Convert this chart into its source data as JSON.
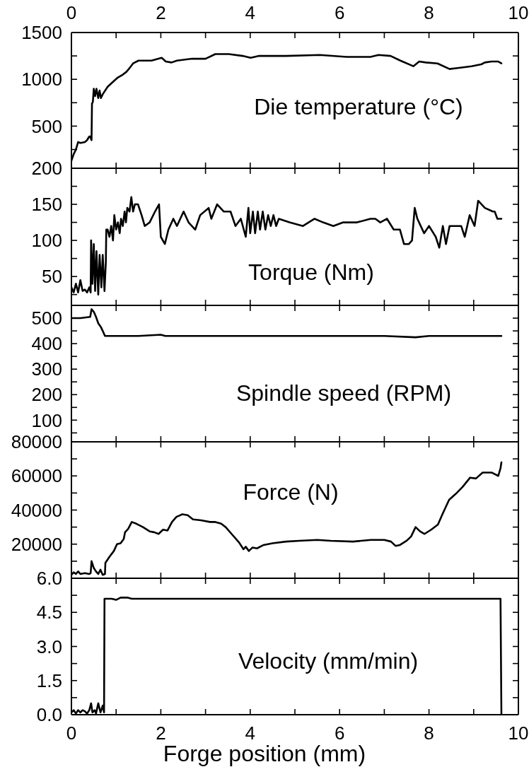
{
  "chart_data": [
    {
      "type": "line",
      "title": "Die temperature (°C)",
      "color": "#000000",
      "xlim": [
        0,
        10
      ],
      "xticks": [
        0,
        {
          "value": 1,
          "label": null
        },
        2,
        {
          "value": 3,
          "label": null
        },
        4,
        {
          "value": 5,
          "label": null
        },
        6,
        {
          "value": 7,
          "label": null
        },
        8,
        {
          "value": 9,
          "label": null
        },
        10
      ],
      "x2lim": [
        0,
        10
      ],
      "x2ticks": [
        0,
        {
          "value": 1,
          "label": null
        },
        2,
        {
          "value": 3,
          "label": null
        },
        4,
        {
          "value": 5,
          "label": null
        },
        6,
        {
          "value": 7,
          "label": null
        },
        8,
        {
          "value": 9,
          "label": null
        },
        10
      ],
      "ylim": [
        50,
        1500
      ],
      "yticks": [
        {
          "value": 250,
          "label": null
        },
        500,
        {
          "value": 750,
          "label": null
        },
        1000,
        {
          "value": 1250,
          "label": null
        },
        1500
      ],
      "tick_labels": "y",
      "x": [
        0,
        0.05,
        0.1,
        0.15,
        0.2,
        0.3,
        0.35,
        0.4,
        0.42,
        0.45,
        0.46,
        0.48,
        0.5,
        0.53,
        0.56,
        0.6,
        0.63,
        0.66,
        0.7,
        0.81,
        0.9,
        1.04,
        1.15,
        1.23,
        1.3,
        1.38,
        1.5,
        1.57,
        1.79,
        2.02,
        2.11,
        2.24,
        2.36,
        2.7,
        3.0,
        3.22,
        3.52,
        3.83,
        4.01,
        4.2,
        4.8,
        5.56,
        6.16,
        6.69,
        6.87,
        7.14,
        7.36,
        7.65,
        7.78,
        7.93,
        8.19,
        8.46,
        8.64,
        8.95,
        9.17,
        9.25,
        9.4,
        9.55,
        9.62
      ],
      "values": [
        130,
        200,
        250,
        330,
        320,
        330,
        350,
        390,
        390,
        350,
        740,
        760,
        900,
        820,
        900,
        800,
        880,
        800,
        840,
        920,
        960,
        1020,
        1050,
        1080,
        1120,
        1170,
        1200,
        1200,
        1200,
        1230,
        1190,
        1180,
        1200,
        1220,
        1220,
        1270,
        1270,
        1250,
        1230,
        1250,
        1250,
        1260,
        1240,
        1240,
        1260,
        1250,
        1200,
        1140,
        1190,
        1180,
        1170,
        1110,
        1120,
        1140,
        1160,
        1180,
        1190,
        1190,
        1170
      ]
    },
    {
      "type": "line",
      "title": "Torque (Nm)",
      "color": "#000000",
      "xlim": [
        0,
        10
      ],
      "xticks": [
        0,
        {
          "value": 1,
          "label": null
        },
        2,
        {
          "value": 3,
          "label": null
        },
        4,
        {
          "value": 5,
          "label": null
        },
        6,
        {
          "value": 7,
          "label": null
        },
        8,
        {
          "value": 9,
          "label": null
        },
        10
      ],
      "ylim": [
        10,
        200
      ],
      "yticks": [
        {
          "value": 25,
          "label": null
        },
        50,
        {
          "value": 75,
          "label": null
        },
        100,
        {
          "value": 125,
          "label": null
        },
        150,
        {
          "value": 175,
          "label": null
        },
        200
      ],
      "tick_labels": "y",
      "x": [
        0,
        0.05,
        0.1,
        0.15,
        0.2,
        0.25,
        0.3,
        0.35,
        0.4,
        0.43,
        0.44,
        0.47,
        0.5,
        0.53,
        0.56,
        0.6,
        0.63,
        0.67,
        0.7,
        0.74,
        0.77,
        0.78,
        0.81,
        0.85,
        0.89,
        0.93,
        0.96,
        1.0,
        1.04,
        1.08,
        1.11,
        1.15,
        1.19,
        1.22,
        1.25,
        1.3,
        1.34,
        1.38,
        1.42,
        1.49,
        1.57,
        1.64,
        1.75,
        1.87,
        1.96,
        2.0,
        2.09,
        2.17,
        2.28,
        2.36,
        2.51,
        2.62,
        2.77,
        2.88,
        3.07,
        3.13,
        3.26,
        3.41,
        3.56,
        3.67,
        3.79,
        3.9,
        3.96,
        4.0,
        4.06,
        4.11,
        4.17,
        4.22,
        4.28,
        4.34,
        4.4,
        4.46,
        4.52,
        4.58,
        4.64,
        4.88,
        5.18,
        5.44,
        5.63,
        5.86,
        6.08,
        6.39,
        6.69,
        6.8,
        6.91,
        7.06,
        7.21,
        7.35,
        7.44,
        7.55,
        7.62,
        7.68,
        7.74,
        7.89,
        8.0,
        8.15,
        8.23,
        8.31,
        8.38,
        8.46,
        8.57,
        8.72,
        8.8,
        8.91,
        9.02,
        9.1,
        9.25,
        9.43,
        9.47,
        9.53,
        9.62
      ],
      "values": [
        35,
        28,
        40,
        28,
        45,
        30,
        32,
        28,
        35,
        28,
        100,
        40,
        95,
        30,
        85,
        25,
        80,
        35,
        80,
        30,
        70,
        115,
        115,
        105,
        120,
        100,
        135,
        115,
        125,
        110,
        130,
        120,
        140,
        125,
        145,
        140,
        160,
        140,
        150,
        150,
        135,
        120,
        125,
        140,
        150,
        105,
        95,
        115,
        130,
        120,
        140,
        125,
        115,
        135,
        145,
        130,
        150,
        140,
        140,
        120,
        130,
        105,
        145,
        110,
        140,
        110,
        140,
        115,
        140,
        115,
        135,
        120,
        135,
        120,
        130,
        125,
        120,
        130,
        125,
        120,
        125,
        125,
        130,
        130,
        125,
        130,
        115,
        115,
        95,
        95,
        100,
        145,
        130,
        110,
        120,
        105,
        90,
        120,
        95,
        120,
        120,
        120,
        105,
        135,
        120,
        155,
        145,
        140,
        140,
        130,
        130
      ]
    },
    {
      "type": "line",
      "title": "Spindle speed (RPM)",
      "color": "#000000",
      "xlim": [
        0,
        10
      ],
      "xticks": [
        0,
        {
          "value": 1,
          "label": null
        },
        2,
        {
          "value": 3,
          "label": null
        },
        4,
        {
          "value": 5,
          "label": null
        },
        6,
        {
          "value": 7,
          "label": null
        },
        8,
        {
          "value": 9,
          "label": null
        },
        10
      ],
      "ylim": [
        15,
        550
      ],
      "yticks": [
        {
          "value": 50,
          "label": null
        },
        100,
        {
          "value": 150,
          "label": null
        },
        200,
        {
          "value": 250,
          "label": null
        },
        300,
        {
          "value": 350,
          "label": null
        },
        400,
        {
          "value": 450,
          "label": null
        },
        500
      ],
      "tick_labels": "y",
      "x": [
        0,
        0.2,
        0.42,
        0.45,
        0.5,
        0.55,
        0.6,
        0.66,
        0.7,
        0.75,
        1.0,
        1.5,
        2.0,
        2.1,
        3,
        4,
        5,
        6,
        7,
        7.7,
        8,
        9,
        9.62
      ],
      "values": [
        500,
        500,
        505,
        535,
        525,
        505,
        480,
        465,
        450,
        430,
        430,
        430,
        435,
        430,
        430,
        430,
        430,
        430,
        430,
        425,
        430,
        430,
        430
      ]
    },
    {
      "type": "line",
      "title": "Force (N)",
      "color": "#000000",
      "xlim": [
        0,
        10
      ],
      "xticks": [
        0,
        {
          "value": 1,
          "label": null
        },
        2,
        {
          "value": 3,
          "label": null
        },
        4,
        {
          "value": 5,
          "label": null
        },
        6,
        {
          "value": 7,
          "label": null
        },
        8,
        {
          "value": 9,
          "label": null
        },
        10
      ],
      "ylim": [
        0,
        80000
      ],
      "yticks": [
        {
          "value": 10000,
          "label": null
        },
        20000,
        {
          "value": 30000,
          "label": null
        },
        40000,
        {
          "value": 50000,
          "label": null
        },
        60000,
        {
          "value": 70000,
          "label": null
        },
        80000
      ],
      "tick_labels": "y",
      "x": [
        0,
        0.05,
        0.1,
        0.15,
        0.2,
        0.3,
        0.4,
        0.43,
        0.45,
        0.5,
        0.55,
        0.6,
        0.65,
        0.7,
        0.75,
        0.76,
        0.85,
        0.95,
        1.02,
        1.1,
        1.17,
        1.2,
        1.27,
        1.35,
        1.45,
        1.6,
        1.75,
        1.85,
        1.95,
        2.05,
        2.15,
        2.25,
        2.35,
        2.48,
        2.6,
        2.72,
        2.9,
        3.1,
        3.22,
        3.35,
        3.45,
        3.6,
        3.75,
        3.85,
        3.9,
        3.97,
        4.05,
        4.15,
        4.3,
        4.5,
        4.8,
        5.1,
        5.5,
        5.8,
        6.3,
        6.7,
        7.0,
        7.15,
        7.25,
        7.35,
        7.5,
        7.6,
        7.7,
        7.8,
        7.9,
        8.05,
        8.2,
        8.3,
        8.45,
        8.6,
        8.75,
        8.92,
        9.05,
        9.2,
        9.4,
        9.55,
        9.6,
        9.62
      ],
      "values": [
        2000,
        3500,
        2500,
        4000,
        2500,
        3000,
        2500,
        3000,
        10000,
        6000,
        4000,
        2500,
        5000,
        2000,
        2500,
        9000,
        12500,
        16000,
        20000,
        20500,
        23000,
        27000,
        29000,
        33000,
        32000,
        30000,
        27500,
        27000,
        26000,
        28500,
        28000,
        33000,
        36000,
        37500,
        37000,
        34500,
        34000,
        33000,
        33000,
        32000,
        30000,
        25500,
        21000,
        17000,
        18500,
        16000,
        18000,
        17500,
        19500,
        20500,
        21500,
        22000,
        22500,
        22000,
        21500,
        22500,
        22500,
        21500,
        19000,
        19500,
        22000,
        24500,
        30000,
        27500,
        26000,
        28500,
        31500,
        37500,
        46000,
        49500,
        53500,
        59000,
        58500,
        62000,
        62000,
        60000,
        64500,
        68000
      ]
    },
    {
      "type": "line",
      "title": "Velocity (mm/min)",
      "xlabel": "Forge position (mm)",
      "color": "#000000",
      "xlim": [
        0,
        10
      ],
      "xticks": [
        0,
        {
          "value": 1,
          "label": null
        },
        2,
        {
          "value": 3,
          "label": null
        },
        4,
        {
          "value": 5,
          "label": null
        },
        6,
        {
          "value": 7,
          "label": null
        },
        8,
        {
          "value": 9,
          "label": null
        },
        10
      ],
      "ylim": [
        0,
        6
      ],
      "yticks": [
        {
          "value": 0,
          "label": "0.0"
        },
        {
          "value": 0.75,
          "label": null
        },
        1.5,
        {
          "value": 2.25,
          "label": null
        },
        {
          "value": 3,
          "label": "3.0"
        },
        {
          "value": 3.75,
          "label": null
        },
        4.5,
        {
          "value": 5.25,
          "label": null
        },
        {
          "value": 6,
          "label": "6.0"
        }
      ],
      "x": [
        0,
        0.05,
        0.1,
        0.15,
        0.2,
        0.25,
        0.3,
        0.35,
        0.4,
        0.44,
        0.47,
        0.52,
        0.55,
        0.6,
        0.65,
        0.7,
        0.73,
        0.74,
        0.9,
        1.0,
        1.1,
        1.25,
        1.35,
        2,
        3,
        4,
        5,
        6,
        7,
        8,
        9,
        9.6,
        9.62
      ],
      "values": [
        0.1,
        0.2,
        0.05,
        0.2,
        0.1,
        0.2,
        0.15,
        0.05,
        0.2,
        0.5,
        0.1,
        0.2,
        0.05,
        0.5,
        0.1,
        0.4,
        0.1,
        5.1,
        5.1,
        5.05,
        5.15,
        5.15,
        5.1,
        5.1,
        5.1,
        5.1,
        5.1,
        5.1,
        5.1,
        5.1,
        5.1,
        5.1,
        0
      ]
    }
  ]
}
